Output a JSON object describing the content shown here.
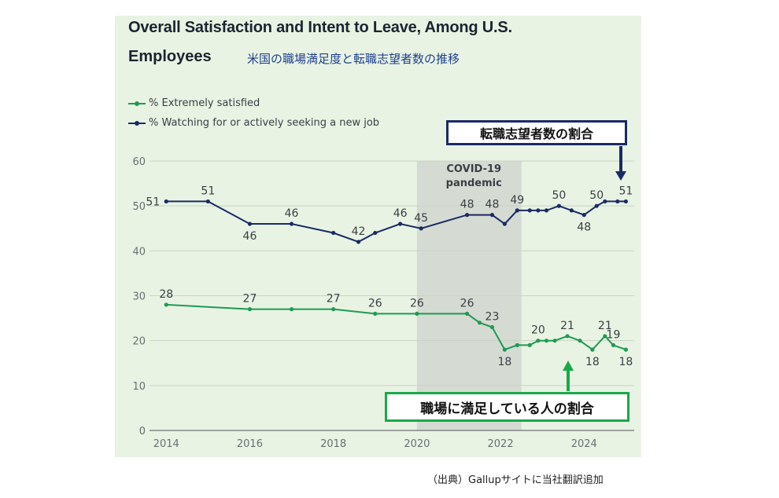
{
  "header": {
    "title_line1": "Overall Satisfaction and Intent to Leave, Among U.S.",
    "title_line2": "Employees",
    "jp_subtitle": "米国の職場満足度と転職志望者数の推移"
  },
  "annotations": {
    "leave_box": "転職志望者数の割合",
    "satisfied_box": "職場に満足している人の割合",
    "source": "（出典）Gallupサイトに当社翻訳追加",
    "covid_label_line1": "COVID-19",
    "covid_label_line2": "pandemic"
  },
  "colors": {
    "satisfied": "#1f9a54",
    "leaving": "#1a2a66",
    "panel_bg": "#e8f3e3",
    "covid_shade": "#d5dbd2",
    "leave_arrow": "#1a2a66",
    "satisfied_arrow": "#1aa84a"
  },
  "chart_data": {
    "type": "line",
    "title": "Overall Satisfaction and Intent to Leave, Among U.S. Employees",
    "xlabel": "",
    "ylabel": "",
    "xlim": [
      2013.6,
      2025.2
    ],
    "ylim": [
      0,
      60
    ],
    "yticks": [
      0,
      10,
      20,
      30,
      40,
      50,
      60
    ],
    "xticks": [
      2014,
      2016,
      2018,
      2020,
      2022,
      2024
    ],
    "grid": true,
    "legend_position": "top-left",
    "shaded_region": {
      "label": "COVID-19 pandemic",
      "x_start": 2020.0,
      "x_end": 2022.5
    },
    "series": [
      {
        "name": "% Extremely satisfied",
        "points": [
          {
            "x": 2014.0,
            "y": 28,
            "label": "28"
          },
          {
            "x": 2016.0,
            "y": 27,
            "label": "27"
          },
          {
            "x": 2017.0,
            "y": 27
          },
          {
            "x": 2018.0,
            "y": 27,
            "label": "27"
          },
          {
            "x": 2019.0,
            "y": 26,
            "label": "26"
          },
          {
            "x": 2020.0,
            "y": 26,
            "label": "26"
          },
          {
            "x": 2021.2,
            "y": 26,
            "label": "26"
          },
          {
            "x": 2021.5,
            "y": 24
          },
          {
            "x": 2021.8,
            "y": 23,
            "label": "23"
          },
          {
            "x": 2022.1,
            "y": 18,
            "label": "18"
          },
          {
            "x": 2022.4,
            "y": 19
          },
          {
            "x": 2022.7,
            "y": 19
          },
          {
            "x": 2022.9,
            "y": 20,
            "label": "20"
          },
          {
            "x": 2023.1,
            "y": 20
          },
          {
            "x": 2023.3,
            "y": 20
          },
          {
            "x": 2023.6,
            "y": 21,
            "label": "21"
          },
          {
            "x": 2023.9,
            "y": 20
          },
          {
            "x": 2024.2,
            "y": 18,
            "label": "18"
          },
          {
            "x": 2024.5,
            "y": 21,
            "label": "21"
          },
          {
            "x": 2024.7,
            "y": 19,
            "label": "19"
          },
          {
            "x": 2025.0,
            "y": 18,
            "label": "18"
          }
        ]
      },
      {
        "name": "% Watching for or actively seeking a new job",
        "points": [
          {
            "x": 2014.0,
            "y": 51,
            "label": "51"
          },
          {
            "x": 2015.0,
            "y": 51,
            "label": "51"
          },
          {
            "x": 2016.0,
            "y": 46,
            "label": "46"
          },
          {
            "x": 2017.0,
            "y": 46,
            "label": "46"
          },
          {
            "x": 2018.0,
            "y": 44
          },
          {
            "x": 2018.6,
            "y": 42,
            "label": "42"
          },
          {
            "x": 2019.0,
            "y": 44
          },
          {
            "x": 2019.6,
            "y": 46,
            "label": "46"
          },
          {
            "x": 2020.1,
            "y": 45,
            "label": "45"
          },
          {
            "x": 2021.2,
            "y": 48,
            "label": "48"
          },
          {
            "x": 2021.8,
            "y": 48,
            "label": "48"
          },
          {
            "x": 2022.1,
            "y": 46
          },
          {
            "x": 2022.4,
            "y": 49,
            "label": "49"
          },
          {
            "x": 2022.7,
            "y": 49
          },
          {
            "x": 2022.9,
            "y": 49
          },
          {
            "x": 2023.1,
            "y": 49
          },
          {
            "x": 2023.4,
            "y": 50,
            "label": "50"
          },
          {
            "x": 2023.7,
            "y": 49
          },
          {
            "x": 2024.0,
            "y": 48,
            "label": "48"
          },
          {
            "x": 2024.3,
            "y": 50,
            "label": "50"
          },
          {
            "x": 2024.5,
            "y": 51
          },
          {
            "x": 2024.8,
            "y": 51
          },
          {
            "x": 2025.0,
            "y": 51,
            "label": "51"
          }
        ]
      }
    ]
  }
}
